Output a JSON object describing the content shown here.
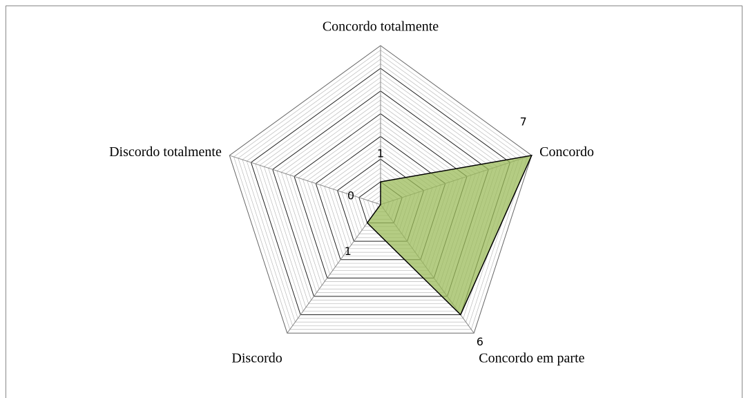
{
  "chart_data": {
    "type": "radar",
    "categories": [
      "Concordo totalmente",
      "Concordo",
      "Concordo em parte",
      "Discordo",
      "Discordo totalmente"
    ],
    "values": [
      1,
      7,
      6,
      1,
      0
    ],
    "color": "#9bbb59",
    "ylim": [
      0,
      7
    ],
    "yticks": [
      0,
      1,
      2,
      3,
      4,
      5,
      6,
      7
    ],
    "grid": true
  }
}
